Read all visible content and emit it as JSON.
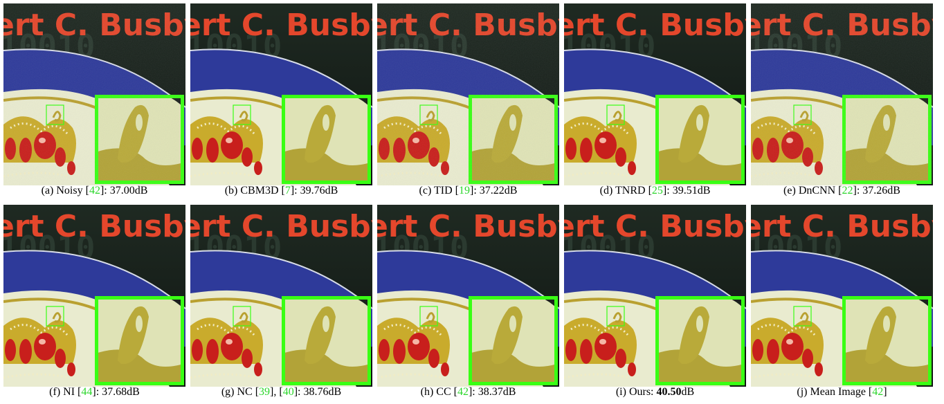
{
  "figure": {
    "image_text": "ert C. Busby",
    "accent_color": "#39ff14",
    "panels": [
      {
        "id": "a",
        "method": "Noisy",
        "refs": [
          "42"
        ],
        "psnr": "37.00dB",
        "psnr_bold": false
      },
      {
        "id": "b",
        "method": "CBM3D",
        "refs": [
          "7"
        ],
        "psnr": "39.76dB",
        "psnr_bold": false
      },
      {
        "id": "c",
        "method": "TID",
        "refs": [
          "19"
        ],
        "psnr": "37.22dB",
        "psnr_bold": false
      },
      {
        "id": "d",
        "method": "TNRD",
        "refs": [
          "25"
        ],
        "psnr": "39.51dB",
        "psnr_bold": false
      },
      {
        "id": "e",
        "method": "DnCNN",
        "refs": [
          "22"
        ],
        "psnr": "37.26dB",
        "psnr_bold": false
      },
      {
        "id": "f",
        "method": "NI",
        "refs": [
          "44"
        ],
        "psnr": "37.68dB",
        "psnr_bold": false
      },
      {
        "id": "g",
        "method": "NC",
        "refs": [
          "39",
          "40"
        ],
        "psnr": "38.76dB",
        "psnr_bold": false
      },
      {
        "id": "h",
        "method": "CC",
        "refs": [
          "42"
        ],
        "psnr": "38.37dB",
        "psnr_bold": false
      },
      {
        "id": "i",
        "method": "Ours",
        "refs": [],
        "psnr": "40.50",
        "psnr_unit": "dB",
        "psnr_bold": true
      },
      {
        "id": "j",
        "method": "Mean Image",
        "refs": [
          "42"
        ],
        "psnr": "",
        "psnr_bold": false
      }
    ]
  }
}
